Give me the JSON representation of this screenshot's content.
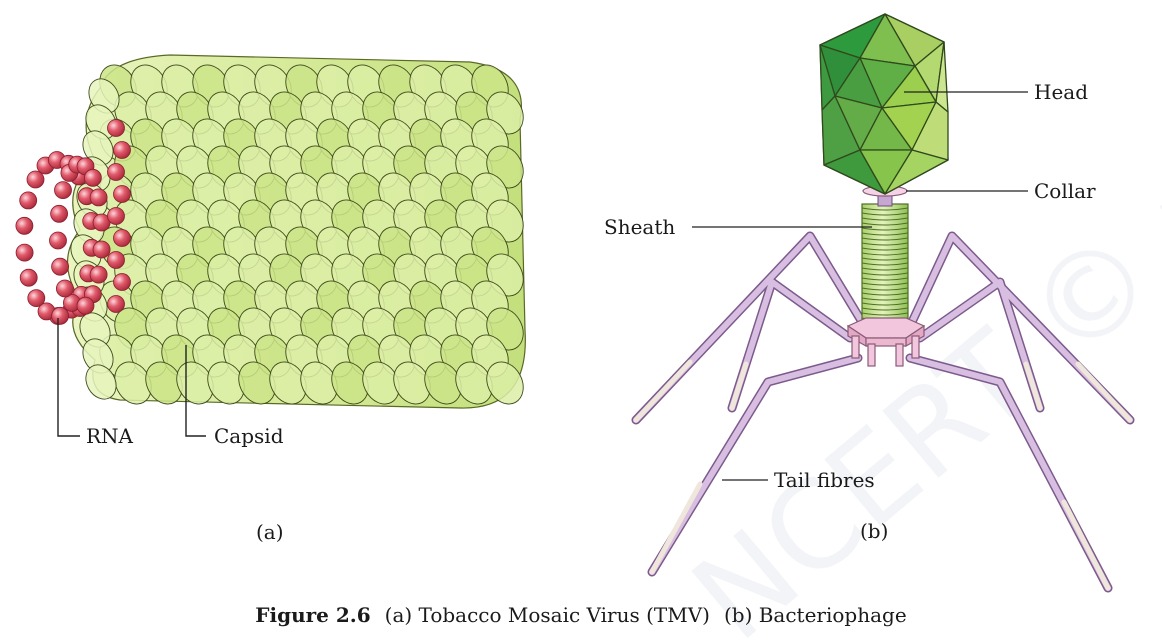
{
  "tmv": {
    "labels": {
      "rna": "RNA",
      "capsid": "Capsid"
    },
    "panel_letter": "(a)",
    "colors": {
      "capsid_fill": "#d9ec9c",
      "capsid_stroke": "#3f4a1c",
      "rna_bead": "#e05a6a",
      "rna_bead_dark": "#a8283a"
    }
  },
  "phage": {
    "labels": {
      "head": "Head",
      "collar": "Collar",
      "sheath": "Sheath",
      "tail_fibres": "Tail fibres"
    },
    "panel_letter": "(b)",
    "colors": {
      "head_light": "#9fd14a",
      "head_dark": "#3f9a3a",
      "sheath": "#bfe08a",
      "fibres": "#c9a3d6",
      "base_plate": "#f2c6dc"
    }
  },
  "watermark": "NCERT © not to be republished",
  "caption": {
    "figure_number": "Figure 2.6",
    "part_a": "(a) Tobacco Mosaic Virus (TMV)",
    "part_b": "(b) Bacteriophage"
  }
}
